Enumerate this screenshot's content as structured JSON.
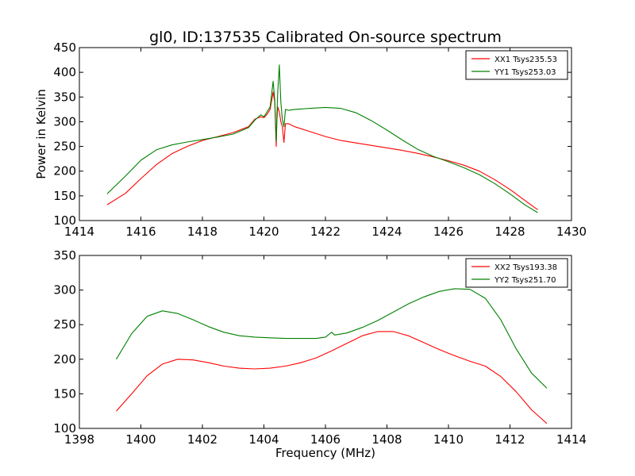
{
  "figure": {
    "title": "gl0, ID:137535 Calibrated On-source spectrum",
    "xlabel": "Frequency (MHz)",
    "ylabel": "Power in Kelvin"
  },
  "colors": {
    "red": "#ff0000",
    "green": "#008000",
    "axes": "#000000"
  },
  "chart_data": [
    {
      "type": "line",
      "title": "gl0, ID:137535 Calibrated On-source spectrum",
      "xlabel": "",
      "ylabel": "Power in Kelvin",
      "xlim": [
        1414,
        1430
      ],
      "ylim": [
        100,
        450
      ],
      "xticks": [
        1414,
        1416,
        1418,
        1420,
        1422,
        1424,
        1426,
        1428,
        1430
      ],
      "yticks": [
        100,
        150,
        200,
        250,
        300,
        350,
        400,
        450
      ],
      "legend_position": "top-right",
      "series": [
        {
          "name": "XX1 Tsys235.53",
          "color": "#ff0000",
          "x": [
            1414.9,
            1415.5,
            1416.0,
            1416.5,
            1417.0,
            1417.5,
            1418.0,
            1418.5,
            1419.0,
            1419.5,
            1419.7,
            1419.9,
            1420.0,
            1420.1,
            1420.2,
            1420.3,
            1420.35,
            1420.4,
            1420.42,
            1420.45,
            1420.5,
            1420.55,
            1420.6,
            1420.65,
            1420.7,
            1420.8,
            1421.0,
            1421.5,
            1422.0,
            1422.5,
            1423.0,
            1423.5,
            1424.0,
            1424.5,
            1425.0,
            1425.5,
            1426.0,
            1426.5,
            1427.0,
            1427.5,
            1428.0,
            1428.5,
            1428.9
          ],
          "values": [
            132,
            155,
            185,
            213,
            235,
            250,
            262,
            270,
            278,
            290,
            305,
            310,
            308,
            315,
            325,
            360,
            340,
            250,
            300,
            330,
            320,
            300,
            290,
            258,
            296,
            296,
            290,
            280,
            270,
            262,
            257,
            252,
            247,
            242,
            236,
            229,
            221,
            212,
            200,
            183,
            163,
            140,
            122
          ]
        },
        {
          "name": "YY1 Tsys253.03",
          "color": "#008000",
          "x": [
            1414.9,
            1415.5,
            1416.0,
            1416.5,
            1417.0,
            1417.5,
            1418.0,
            1418.5,
            1419.0,
            1419.5,
            1419.7,
            1419.9,
            1420.0,
            1420.1,
            1420.2,
            1420.3,
            1420.35,
            1420.4,
            1420.42,
            1420.45,
            1420.5,
            1420.55,
            1420.6,
            1420.65,
            1420.7,
            1420.8,
            1421.0,
            1421.5,
            1422.0,
            1422.5,
            1423.0,
            1423.5,
            1424.0,
            1424.5,
            1425.0,
            1425.5,
            1426.0,
            1426.5,
            1427.0,
            1427.5,
            1428.0,
            1428.5,
            1428.9
          ],
          "values": [
            154,
            190,
            222,
            243,
            253,
            259,
            264,
            269,
            275,
            288,
            303,
            314,
            310,
            320,
            330,
            382,
            345,
            260,
            310,
            360,
            415,
            340,
            305,
            290,
            325,
            323,
            325,
            327,
            329,
            327,
            318,
            302,
            283,
            263,
            244,
            230,
            219,
            207,
            193,
            175,
            154,
            131,
            116
          ]
        }
      ]
    },
    {
      "type": "line",
      "title": "",
      "xlabel": "Frequency (MHz)",
      "ylabel": "",
      "xlim": [
        1398,
        1414
      ],
      "ylim": [
        100,
        350
      ],
      "xticks": [
        1398,
        1400,
        1402,
        1404,
        1406,
        1408,
        1410,
        1412,
        1414
      ],
      "yticks": [
        100,
        150,
        200,
        250,
        300,
        350
      ],
      "legend_position": "top-right",
      "series": [
        {
          "name": "XX2 Tsys193.38",
          "color": "#ff0000",
          "x": [
            1399.2,
            1399.7,
            1400.2,
            1400.7,
            1401.2,
            1401.7,
            1402.2,
            1402.7,
            1403.2,
            1403.7,
            1404.2,
            1404.7,
            1405.2,
            1405.7,
            1406.2,
            1406.7,
            1407.2,
            1407.7,
            1408.2,
            1408.7,
            1409.2,
            1409.7,
            1410.2,
            1410.7,
            1411.2,
            1411.7,
            1412.2,
            1412.7,
            1413.2
          ],
          "values": [
            125,
            150,
            176,
            193,
            200,
            199,
            195,
            190,
            187,
            186,
            187,
            190,
            195,
            202,
            212,
            223,
            234,
            240,
            240,
            234,
            224,
            214,
            205,
            197,
            190,
            175,
            153,
            127,
            107
          ]
        },
        {
          "name": "YY2 Tsys251.70",
          "color": "#008000",
          "x": [
            1399.2,
            1399.7,
            1400.2,
            1400.7,
            1401.2,
            1401.7,
            1402.2,
            1402.7,
            1403.2,
            1403.7,
            1404.2,
            1404.7,
            1405.2,
            1405.7,
            1406.0,
            1406.2,
            1406.3,
            1406.7,
            1407.2,
            1407.7,
            1408.2,
            1408.7,
            1409.2,
            1409.7,
            1410.2,
            1410.7,
            1411.2,
            1411.7,
            1412.2,
            1412.7,
            1413.2
          ],
          "values": [
            200,
            237,
            262,
            270,
            266,
            257,
            247,
            239,
            234,
            232,
            231,
            230,
            230,
            230,
            232,
            239,
            235,
            238,
            246,
            256,
            268,
            280,
            290,
            298,
            302,
            301,
            288,
            257,
            215,
            180,
            158
          ]
        }
      ]
    }
  ]
}
